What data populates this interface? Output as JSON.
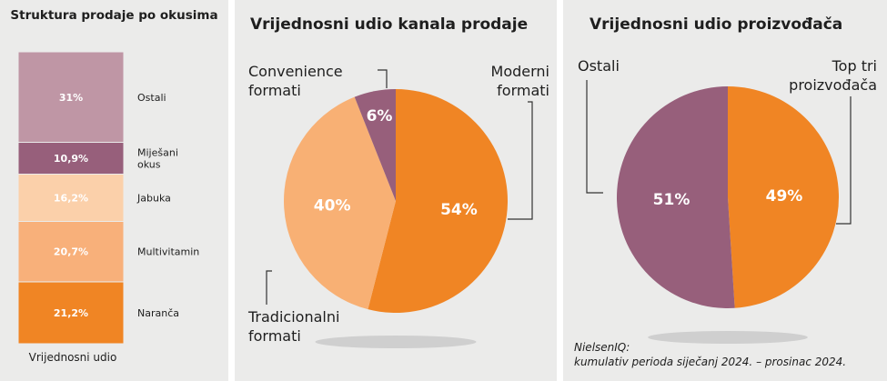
{
  "chart_data": [
    {
      "type": "bar",
      "stacked": true,
      "title": "Struktura prodaje po okusima",
      "xlabel": "Vrijednosni udio",
      "categories": [
        "Naranča",
        "Multivitamin",
        "Jabuka",
        "Miješani okus",
        "Ostali"
      ],
      "values": [
        21.2,
        20.7,
        16.2,
        10.9,
        31
      ],
      "value_labels": [
        "21,2%",
        "20,7%",
        "16,2%",
        "10,9%",
        "31%"
      ],
      "colors": [
        "#f08524",
        "#f8b07a",
        "#fbd0aa",
        "#975f7b",
        "#bf96a5"
      ]
    },
    {
      "type": "pie",
      "title": "Vrijednosni udio kanala prodaje",
      "slices": [
        {
          "label": "Moderni formati",
          "value": 54,
          "display": "54%",
          "color": "#f08524"
        },
        {
          "label": "Tradicionalni formati",
          "value": 40,
          "display": "40%",
          "color": "#f8b074"
        },
        {
          "label": "Convenience formati",
          "value": 6,
          "display": "6%",
          "color": "#975f7b"
        }
      ]
    },
    {
      "type": "pie",
      "title": "Vrijednosni udio proizvođača",
      "slices": [
        {
          "label": "Top tri proizvođača",
          "value": 49,
          "display": "49%",
          "color": "#f08524"
        },
        {
          "label": "Ostali",
          "value": 51,
          "display": "51%",
          "color": "#975f7b"
        }
      ]
    }
  ],
  "source": {
    "line1": "NielsenIQ:",
    "line2": "kumulativ perioda siječanj 2024. – prosinac 2024."
  }
}
